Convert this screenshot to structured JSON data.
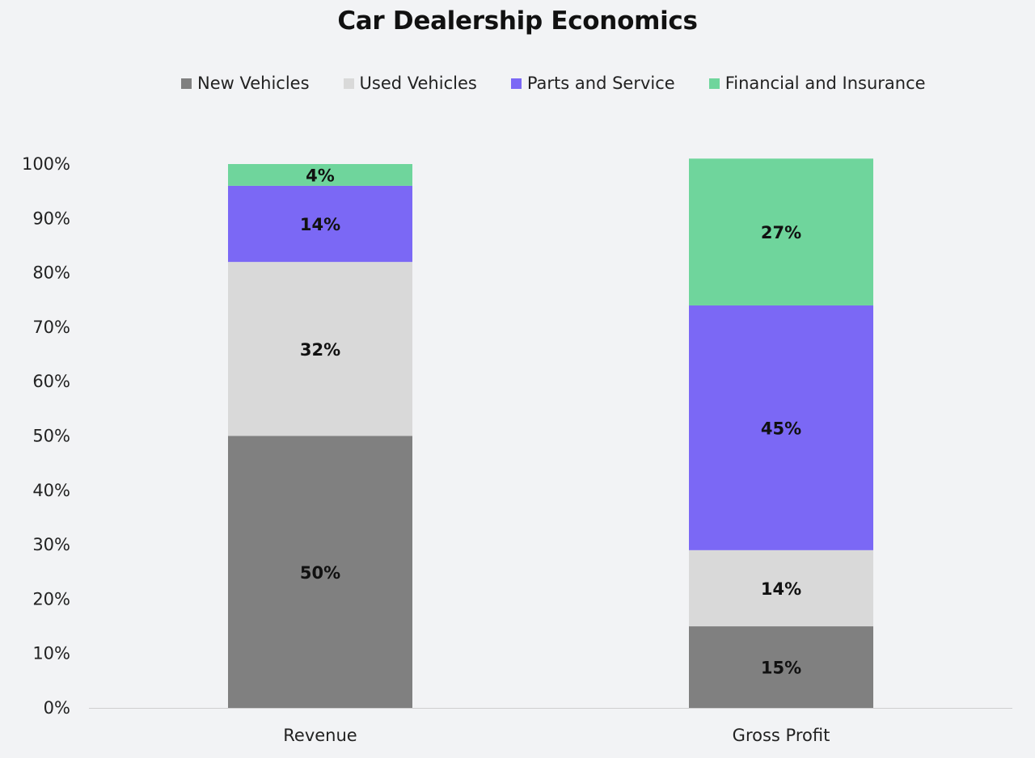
{
  "chart_data": {
    "type": "bar",
    "stacked": true,
    "title": "Car Dealership Economics",
    "categories": [
      "Revenue",
      "Gross Profit"
    ],
    "series": [
      {
        "name": "New Vehicles",
        "values": [
          50,
          15
        ],
        "labels": [
          "50%",
          "15%"
        ],
        "color": "#808080"
      },
      {
        "name": "Used Vehicles",
        "values": [
          32,
          14
        ],
        "labels": [
          "32%",
          "14%"
        ],
        "color": "#d9d9d9"
      },
      {
        "name": "Parts and Service",
        "values": [
          14,
          45
        ],
        "labels": [
          "14%",
          "45%"
        ],
        "color": "#7b68f5"
      },
      {
        "name": "Financial and Insurance",
        "values": [
          4,
          27
        ],
        "labels": [
          "4%",
          "27%"
        ],
        "color": "#6fd59c"
      }
    ],
    "ylim": [
      0,
      100
    ],
    "yticks": [
      "0%",
      "10%",
      "20%",
      "30%",
      "40%",
      "50%",
      "60%",
      "70%",
      "80%",
      "90%",
      "100%"
    ],
    "xlabel": "",
    "ylabel": "",
    "grid": false,
    "legend_position": "top"
  }
}
